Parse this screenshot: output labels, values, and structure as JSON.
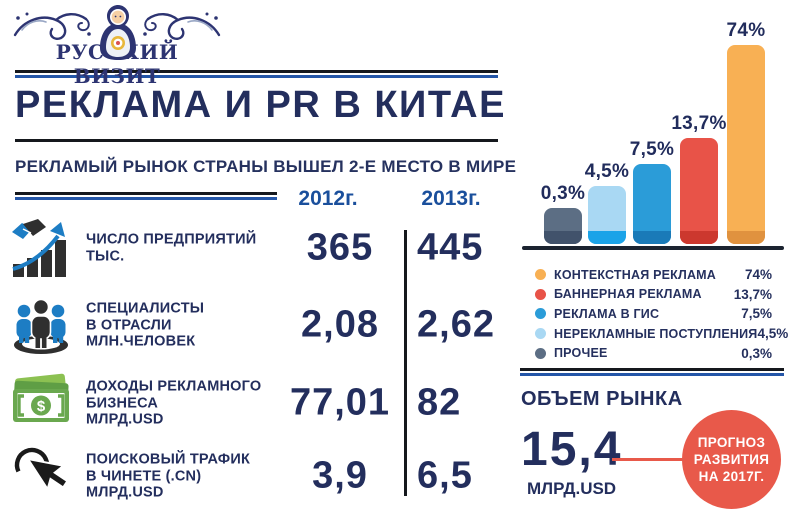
{
  "brand": {
    "name": "РУССКИЙ ВИЗИТ"
  },
  "header": {
    "title": "РЕКЛАМА И PR В КИТАЕ",
    "subtitle": "РЕКЛАМЫЙ РЫНОК СТРАНЫ ВЫШЕЛ 2-Е МЕСТО В МИРЕ"
  },
  "comparison_table": {
    "columns": [
      "2012г.",
      "2013г."
    ],
    "rows": [
      {
        "icon": "growth-handshake-icon",
        "label_lines": [
          "ЧИСЛО ПРЕДПРИЯТИЙ",
          "ТЫС."
        ],
        "value_2012": "365",
        "value_2013": "445"
      },
      {
        "icon": "specialists-group-icon",
        "label_lines": [
          "СПЕЦИАЛИСТЫ",
          "В ОТРАСЛИ",
          "МЛН.ЧЕЛОВЕК"
        ],
        "value_2012": "2,08",
        "value_2013": "2,62"
      },
      {
        "icon": "money-icon",
        "label_lines": [
          "ДОХОДЫ РЕКЛАМНОГО",
          "БИЗНЕСА",
          "МЛРД.USD"
        ],
        "value_2012": "77,01",
        "value_2013": "82"
      },
      {
        "icon": "cursor-click-icon",
        "label_lines": [
          "ПОИСКОВЫЙ ТРАФИК",
          "В ЧИНЕТЕ (.CN)",
          "МЛРД.USD"
        ],
        "value_2012": "3,9",
        "value_2013": "6,5"
      }
    ]
  },
  "chart_data": {
    "type": "bar",
    "categories": [
      "ПРОЧЕЕ",
      "НЕРЕКЛАМНЫЕ ПОСТУПЛЕНИЯ",
      "РЕКЛАМА В ГИС",
      "БАННЕРНАЯ РЕКЛАМА",
      "КОНТЕКСТНАЯ РЕКЛАМА"
    ],
    "values": [
      0.3,
      4.5,
      7.5,
      13.7,
      74
    ],
    "value_labels": [
      "0,3%",
      "4,5%",
      "7,5%",
      "13,7%",
      "74%"
    ],
    "unit": "%",
    "grid": false,
    "axis_labels_shown": false,
    "legend_position": "below-chart",
    "bar_colors": [
      "#5c6e84",
      "#a9d8f3",
      "#2b9cd8",
      "#e85348",
      "#f8b054"
    ],
    "bar_base_colors": [
      "#41526b",
      "#1ba3e8",
      "#1a7ab8",
      "#cc382e",
      "#e0923f"
    ],
    "legend": [
      {
        "label": "КОНТЕКСТНАЯ РЕКЛАМА",
        "value_label": "74%",
        "color": "#f8b054"
      },
      {
        "label": "БАННЕРНАЯ РЕКЛАМА",
        "value_label": "13,7%",
        "color": "#e85348"
      },
      {
        "label": "РЕКЛАМА В ГИС",
        "value_label": "7,5%",
        "color": "#2b9cd8"
      },
      {
        "label": "НЕРЕКЛАМНЫЕ ПОСТУПЛЕНИЯ",
        "value_label": "4,5%",
        "color": "#a9d8f3"
      },
      {
        "label": "ПРОЧЕЕ",
        "value_label": "0,3%",
        "color": "#5c6e84"
      }
    ]
  },
  "market_volume": {
    "heading": "ОБЪЕМ РЫНКА",
    "value": "15,4",
    "unit": "МЛРД.USD",
    "badge_lines": [
      "ПРОГНОЗ",
      "РАЗВИТИЯ",
      "НА 2017Г."
    ]
  },
  "colors": {
    "navy": "#232e5d",
    "header_blue": "#1a4f9c",
    "separator_blue": "#2456a8",
    "badge_red": "#e8594a"
  }
}
